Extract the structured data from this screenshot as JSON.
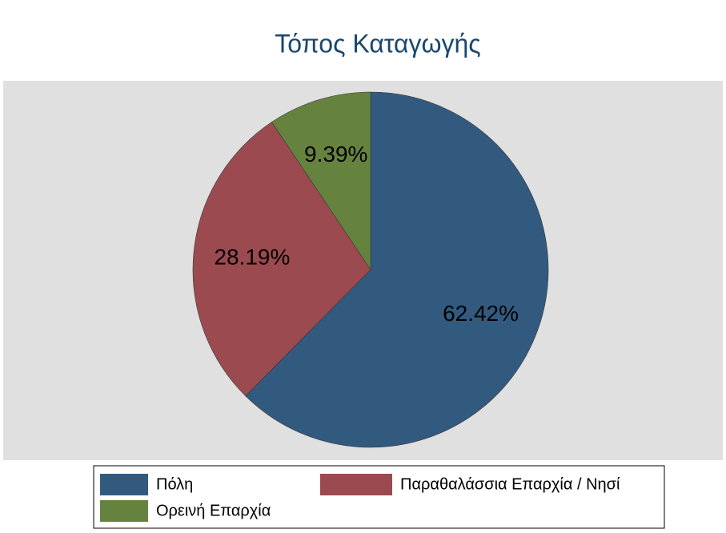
{
  "chart_data": {
    "type": "pie",
    "title": "Τόπος Καταγωγής",
    "categories": [
      "Πόλη",
      "Παραθαλάσσια Επαρχία / Νησί",
      "Ορεινή Επαρχία"
    ],
    "values": [
      62.42,
      28.19,
      9.39
    ],
    "value_labels": [
      "62.42%",
      "28.19%",
      "9.39%"
    ],
    "colors": [
      "#325a7f",
      "#9b4a4f",
      "#66823f"
    ]
  }
}
